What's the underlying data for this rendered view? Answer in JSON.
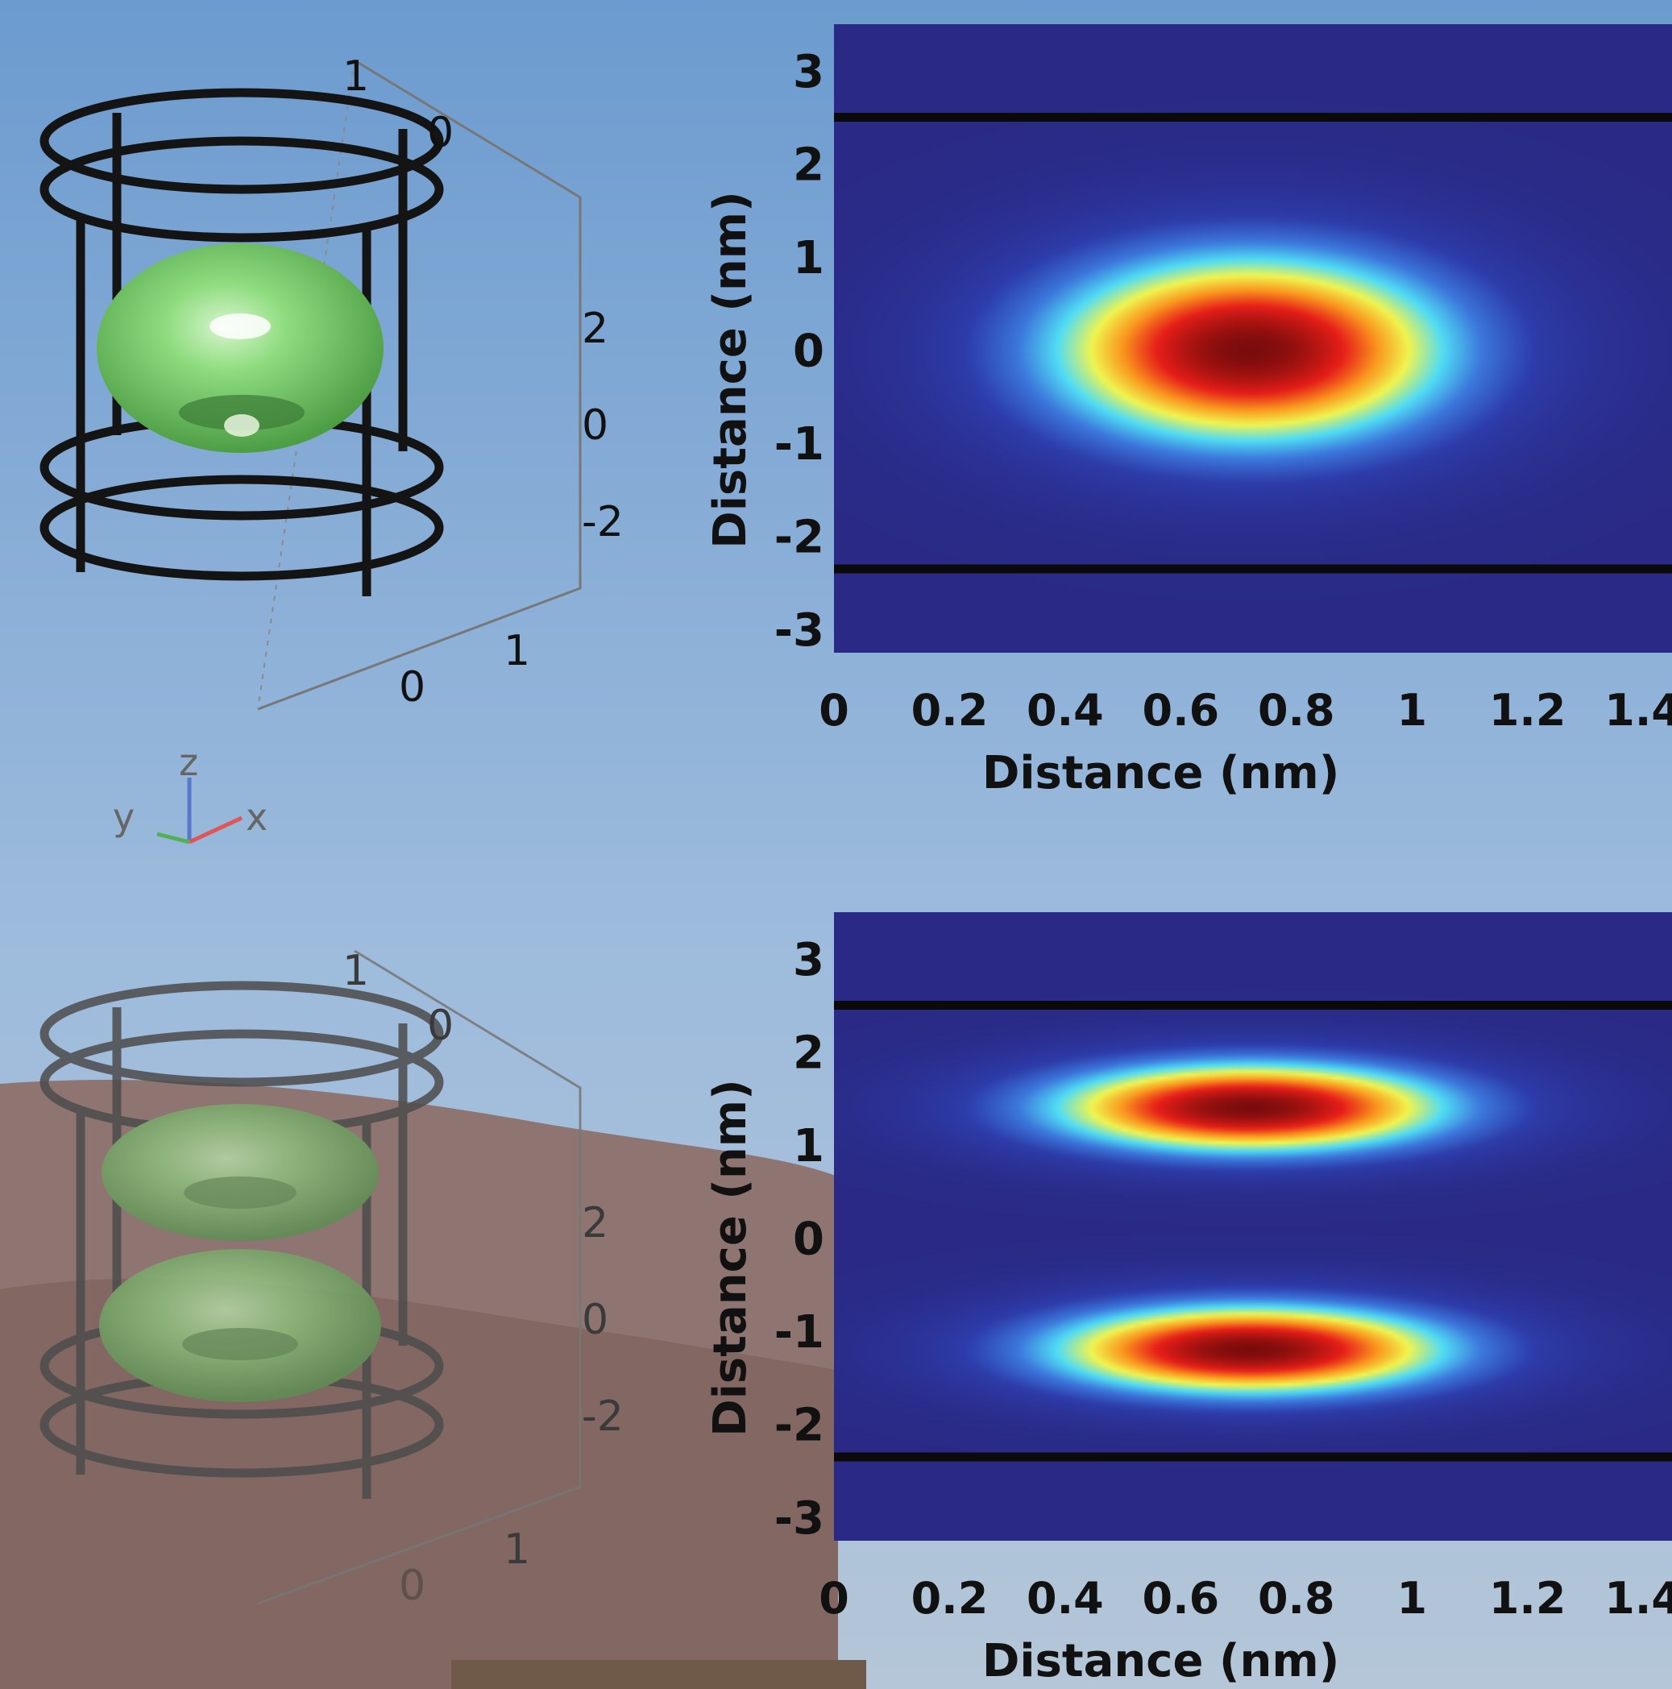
{
  "colors": {
    "sky_top": "#6f9ed0",
    "sky_bottom": "#b6cbe0",
    "hill": "#8f6e68",
    "frame_dark": "#141414",
    "frame_faded": "#4c4c4c",
    "isosurface": "#7bd36c",
    "heatmap_background": "#2a2a86",
    "boundary_line": "#0a0a0a"
  },
  "axes_triad": {
    "z": "z",
    "y": "y",
    "x": "x"
  },
  "chart_data": [
    {
      "type": "3d-isosurface",
      "panel": "top-left",
      "shape": "single torus inside cylindrical cage",
      "axis_ticks": {
        "back": [
          "1",
          "0"
        ],
        "vertical": [
          "2",
          "0",
          "-2"
        ],
        "bottom": [
          "1",
          "0"
        ]
      }
    },
    {
      "type": "heatmap",
      "panel": "top-right",
      "xlabel": "Distance (nm)",
      "ylabel": "Distance (nm)",
      "xlim": [
        0,
        1.45
      ],
      "ylim": [
        -3.25,
        3.5
      ],
      "xticks": [
        "0",
        "0.2",
        "0.4",
        "0.6",
        "0.8",
        "1",
        "1.2",
        "1.4"
      ],
      "yticks": [
        "3",
        "2",
        "1",
        "0",
        "-1",
        "-2",
        "-3"
      ],
      "boundaries_y": [
        2.5,
        -2.35
      ],
      "peaks": [
        {
          "x": 0.72,
          "y": 0.0,
          "sx": 0.36,
          "sy": 1.05
        }
      ]
    },
    {
      "type": "3d-isosurface",
      "panel": "bottom-left",
      "shape": "two stacked tori inside cylindrical cage",
      "axis_ticks": {
        "back": [
          "1",
          "0"
        ],
        "vertical": [
          "2",
          "0",
          "-2"
        ],
        "bottom": [
          "1",
          "0"
        ]
      }
    },
    {
      "type": "heatmap",
      "panel": "bottom-right",
      "xlabel": "Distance (nm)",
      "ylabel": "Distance (nm)",
      "xlim": [
        0,
        1.45
      ],
      "ylim": [
        -3.25,
        3.5
      ],
      "xticks": [
        "0",
        "0.2",
        "0.4",
        "0.6",
        "0.8",
        "1",
        "1.2",
        "1.4"
      ],
      "yticks": [
        "3",
        "2",
        "1",
        "0",
        "-1",
        "-2",
        "-3"
      ],
      "boundaries_y": [
        2.5,
        -2.35
      ],
      "peaks": [
        {
          "x": 0.72,
          "y": 1.4,
          "sx": 0.36,
          "sy": 0.5
        },
        {
          "x": 0.72,
          "y": -1.2,
          "sx": 0.36,
          "sy": 0.5
        }
      ]
    }
  ]
}
